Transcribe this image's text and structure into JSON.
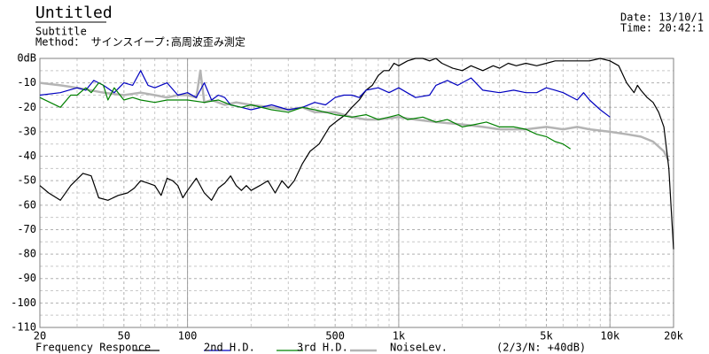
{
  "chart_data": {
    "type": "line",
    "title": "Untitled",
    "subtitle": "Subtitle",
    "method": "Method： サインスイープ:高周波歪み測定",
    "date": "Date: 13/10/1",
    "time": "Time: 20:42:1",
    "legend_note": "(2/3/N: +40dB)",
    "xscale": "log",
    "xlim": [
      20,
      20000
    ],
    "ylim": [
      -110,
      0
    ],
    "xticks": [
      20,
      50,
      100,
      500,
      {
        "value": 1000,
        "label": "1k"
      },
      {
        "value": 5000,
        "label": "5k"
      },
      {
        "value": 10000,
        "label": "10k"
      },
      {
        "value": 20000,
        "label": "20k"
      }
    ],
    "xminor": [
      30,
      40,
      60,
      70,
      80,
      90,
      200,
      300,
      400,
      600,
      700,
      800,
      900,
      2000,
      3000,
      4000,
      6000,
      7000,
      8000,
      9000
    ],
    "xmajor_grid": [
      100,
      1000,
      10000
    ],
    "yticks": [
      {
        "value": 0,
        "label": "0dB"
      },
      -10,
      -20,
      -30,
      -40,
      -50,
      -60,
      -70,
      -80,
      -90,
      -100,
      -110
    ],
    "yminor": [
      -5,
      -15,
      -25,
      -35,
      -45,
      -55,
      -65,
      -75,
      -85,
      -95,
      -105
    ],
    "grid": true,
    "series": [
      {
        "name": "Frequency Responce",
        "color": "#000000",
        "x": [
          20,
          22,
          25,
          28,
          32,
          35,
          38,
          42,
          47,
          52,
          56,
          60,
          65,
          70,
          75,
          80,
          85,
          90,
          95,
          100,
          110,
          120,
          130,
          140,
          150,
          160,
          170,
          180,
          190,
          200,
          220,
          240,
          260,
          280,
          300,
          320,
          350,
          380,
          420,
          470,
          520,
          560,
          600,
          650,
          700,
          750,
          800,
          850,
          900,
          950,
          1000,
          1100,
          1200,
          1300,
          1400,
          1500,
          1600,
          1800,
          2000,
          2200,
          2500,
          2800,
          3000,
          3300,
          3600,
          4000,
          4500,
          5000,
          5500,
          6000,
          7000,
          8000,
          9000,
          10000,
          11000,
          12000,
          13000,
          13500,
          14000,
          15000,
          16000,
          17000,
          18000,
          19000,
          20000
        ],
        "values": [
          -52,
          -55,
          -58,
          -52,
          -47,
          -48,
          -57,
          -58,
          -56,
          -55,
          -53,
          -50,
          -51,
          -52,
          -56,
          -49,
          -50,
          -52,
          -57,
          -54,
          -49,
          -55,
          -58,
          -53,
          -51,
          -48,
          -52,
          -54,
          -52,
          -54,
          -52,
          -50,
          -55,
          -50,
          -53,
          -50,
          -43,
          -38,
          -35,
          -28,
          -25,
          -23,
          -20,
          -17,
          -13,
          -11,
          -7,
          -5,
          -5,
          -2,
          -3,
          -1,
          0,
          0,
          -1,
          0,
          -2,
          -4,
          -5,
          -3,
          -5,
          -3,
          -4,
          -2,
          -3,
          -2,
          -3,
          -2,
          -1,
          -1,
          -1,
          -1,
          0,
          -1,
          -3,
          -10,
          -14,
          -11,
          -13,
          -16,
          -18,
          -22,
          -28,
          -45,
          -78
        ]
      },
      {
        "name": "2nd H.D.",
        "color": "#0000c0",
        "x": [
          20,
          25,
          30,
          33,
          36,
          40,
          45,
          50,
          55,
          60,
          65,
          70,
          80,
          90,
          100,
          110,
          120,
          130,
          140,
          150,
          160,
          180,
          200,
          250,
          300,
          350,
          400,
          450,
          500,
          550,
          600,
          650,
          700,
          800,
          900,
          1000,
          1200,
          1400,
          1500,
          1700,
          1900,
          2200,
          2500,
          3000,
          3500,
          4000,
          4500,
          5000,
          5500,
          6000,
          7000,
          7500,
          8000,
          9000,
          10000
        ],
        "values": [
          -15,
          -14,
          -12,
          -13,
          -9,
          -11,
          -14,
          -10,
          -11,
          -5,
          -11,
          -12,
          -10,
          -15,
          -14,
          -16,
          -10,
          -17,
          -15,
          -16,
          -19,
          -20,
          -21,
          -19,
          -21,
          -20,
          -18,
          -19,
          -16,
          -15,
          -15,
          -16,
          -13,
          -12,
          -14,
          -12,
          -16,
          -15,
          -11,
          -9,
          -11,
          -8,
          -13,
          -14,
          -13,
          -14,
          -14,
          -12,
          -13,
          -14,
          -17,
          -14,
          -17,
          -21,
          -24
        ]
      },
      {
        "name": "3rd H.D.",
        "color": "#008000",
        "x": [
          20,
          25,
          28,
          30,
          33,
          35,
          38,
          40,
          42,
          45,
          50,
          55,
          60,
          70,
          80,
          100,
          120,
          140,
          160,
          180,
          200,
          250,
          300,
          350,
          400,
          450,
          500,
          600,
          700,
          800,
          900,
          1000,
          1100,
          1300,
          1500,
          1700,
          2000,
          2300,
          2600,
          3000,
          3500,
          4000,
          4500,
          5000,
          5500,
          6000,
          6500
        ],
        "values": [
          -16,
          -20,
          -15,
          -15,
          -12,
          -14,
          -10,
          -11,
          -17,
          -12,
          -17,
          -16,
          -17,
          -18,
          -17,
          -17,
          -18,
          -17,
          -19,
          -20,
          -19,
          -21,
          -22,
          -20,
          -21,
          -22,
          -23,
          -24,
          -23,
          -25,
          -24,
          -23,
          -25,
          -24,
          -26,
          -25,
          -28,
          -27,
          -26,
          -28,
          -28,
          -29,
          -31,
          -32,
          -34,
          -35,
          -37
        ]
      },
      {
        "name": "NoiseLev.",
        "color": "#b4b4b4",
        "x": [
          20,
          25,
          30,
          40,
          50,
          60,
          70,
          80,
          90,
          100,
          110,
          115,
          120,
          130,
          150,
          170,
          200,
          250,
          300,
          350,
          400,
          500,
          600,
          700,
          800,
          1000,
          1200,
          1500,
          2000,
          2500,
          3000,
          4000,
          5000,
          6000,
          7000,
          8000,
          10000,
          12000,
          14000,
          16000,
          18000,
          19000
        ],
        "values": [
          -10,
          -11,
          -12,
          -14,
          -15,
          -14,
          -15,
          -16,
          -15,
          -15,
          -16,
          -5,
          -18,
          -17,
          -19,
          -18,
          -19,
          -20,
          -21,
          -20,
          -22,
          -22,
          -24,
          -25,
          -25,
          -24,
          -25,
          -26,
          -27,
          -28,
          -29,
          -29,
          -28,
          -29,
          -28,
          -29,
          -30,
          -31,
          -32,
          -34,
          -38,
          -42
        ]
      }
    ]
  }
}
